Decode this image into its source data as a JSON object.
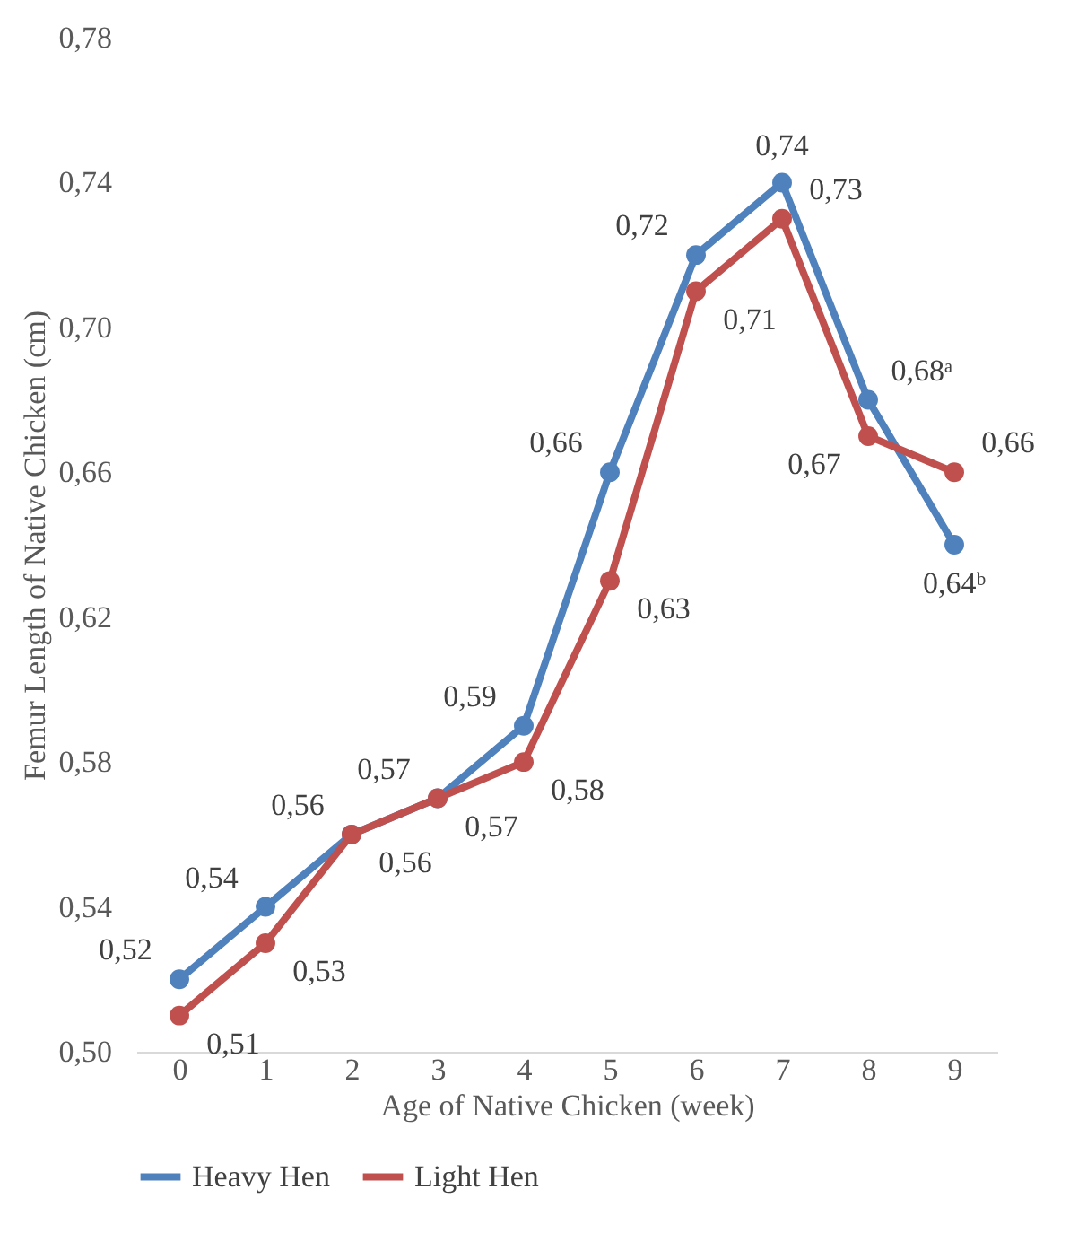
{
  "chart_data": {
    "type": "line",
    "xlabel": "Age of Native Chicken (week)",
    "ylabel": "Femur Length of Native Chicken (cm)",
    "categories": [
      "0",
      "1",
      "2",
      "3",
      "4",
      "5",
      "6",
      "7",
      "8",
      "9"
    ],
    "series": [
      {
        "name": "Heavy Hen",
        "color": "#4f81bd",
        "values": [
          0.52,
          0.54,
          0.56,
          0.57,
          0.59,
          0.66,
          0.72,
          0.74,
          0.68,
          0.64
        ],
        "value_labels": [
          "0,52",
          "0,54",
          "0,56",
          "0,57",
          "0,59",
          "0,66",
          "0,72",
          "0,74",
          "0,68ᵃ",
          "0,64ᵇ"
        ]
      },
      {
        "name": "Light Hen",
        "color": "#c0504d",
        "values": [
          0.51,
          0.53,
          0.56,
          0.57,
          0.58,
          0.63,
          0.71,
          0.73,
          0.67,
          0.66
        ],
        "value_labels": [
          "0,51",
          "0,53",
          "0,56",
          "0,57",
          "0,58",
          "0,63",
          "0,71",
          "0,73",
          "0,67",
          "0,66"
        ]
      }
    ],
    "ylim": [
      0.5,
      0.78
    ],
    "yticks": [
      {
        "value": 0.5,
        "label": "0,50"
      },
      {
        "value": 0.54,
        "label": "0,54"
      },
      {
        "value": 0.58,
        "label": "0,58"
      },
      {
        "value": 0.62,
        "label": "0,62"
      },
      {
        "value": 0.66,
        "label": "0,66"
      },
      {
        "value": 0.7,
        "label": "0,70"
      },
      {
        "value": 0.74,
        "label": "0,74"
      },
      {
        "value": 0.78,
        "label": "0,78"
      }
    ],
    "grid": false,
    "legend": "bottom",
    "marker": "circle",
    "line_style": "solid"
  }
}
